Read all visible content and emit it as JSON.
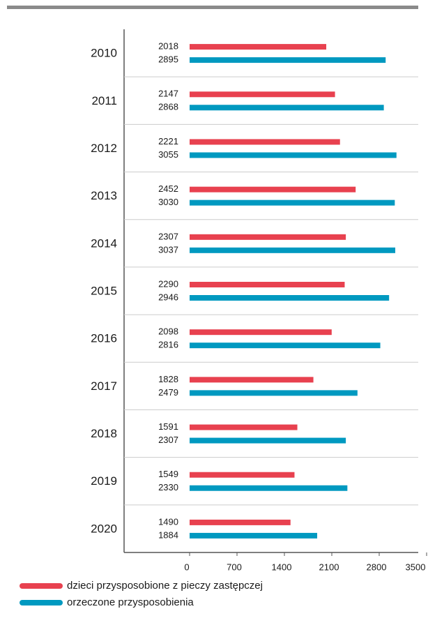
{
  "chart_data": {
    "type": "bar",
    "orientation": "horizontal",
    "categories": [
      "2010",
      "2011",
      "2012",
      "2013",
      "2014",
      "2015",
      "2016",
      "2017",
      "2018",
      "2019",
      "2020"
    ],
    "series": [
      {
        "name": "dzieci przysposobione z pieczy zastępczej",
        "color": "#e8414f",
        "values": [
          2018,
          2147,
          2221,
          2452,
          2307,
          2290,
          2098,
          1828,
          1591,
          1549,
          1490
        ]
      },
      {
        "name": "orzeczone przysposobienia",
        "color": "#0099c0",
        "values": [
          2895,
          2868,
          3055,
          3030,
          3037,
          2946,
          2816,
          2479,
          2307,
          2330,
          1884
        ]
      }
    ],
    "xlim": [
      0,
      3500
    ],
    "xticks": [
      0,
      700,
      1400,
      2100,
      2800,
      3500
    ],
    "legend": "bottom-left"
  }
}
